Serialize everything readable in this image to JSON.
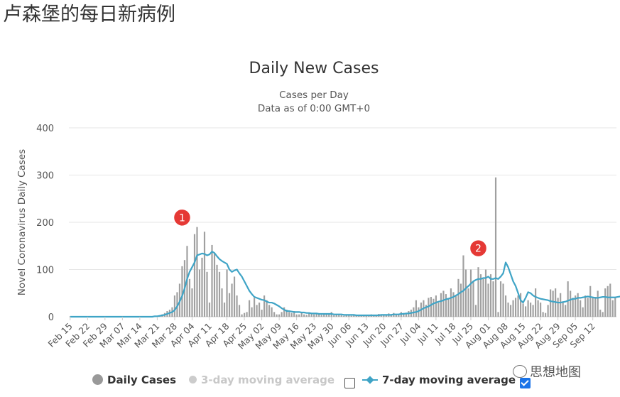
{
  "page": {
    "heading": "卢森堡的每日新病例"
  },
  "chart_data": {
    "type": "bar",
    "title": "Daily New Cases",
    "subtitle_lines": [
      "Cases per Day",
      "Data as of 0:00 GMT+0"
    ],
    "ylabel": "Novel Coronavirus Daily Cases",
    "ylim": [
      0,
      400
    ],
    "yticks": [
      0,
      100,
      200,
      300,
      400
    ],
    "start_date": "Feb 15",
    "xticks": [
      "Feb 15",
      "Feb 22",
      "Feb 29",
      "Mar 07",
      "Mar 14",
      "Mar 21",
      "Mar 28",
      "Apr 04",
      "Apr 11",
      "Apr 18",
      "Apr 25",
      "May 02",
      "May 09",
      "May 16",
      "May 23",
      "May 30",
      "Jun 06",
      "Jun 13",
      "Jun 20",
      "Jun 27",
      "Jul 04",
      "Jul 11",
      "Jul 18",
      "Jul 25",
      "Aug 01",
      "Aug 08",
      "Aug 15",
      "Aug 22",
      "Aug 29",
      "Sep 05",
      "Sep 12"
    ],
    "series": [
      {
        "name": "Daily Cases",
        "color": "#a0a0a0",
        "values": [
          0,
          0,
          0,
          0,
          0,
          0,
          0,
          0,
          0,
          0,
          0,
          0,
          0,
          0,
          0,
          0,
          0,
          0,
          0,
          0,
          0,
          0,
          0,
          0,
          0,
          0,
          0,
          0,
          0,
          0,
          0,
          0,
          0,
          1,
          1,
          2,
          3,
          5,
          8,
          12,
          15,
          20,
          45,
          52,
          70,
          107,
          120,
          150,
          80,
          60,
          175,
          190,
          100,
          125,
          180,
          95,
          30,
          152,
          135,
          110,
          95,
          60,
          30,
          100,
          50,
          70,
          85,
          45,
          25,
          5,
          8,
          10,
          35,
          20,
          40,
          25,
          30,
          15,
          45,
          35,
          25,
          20,
          10,
          5,
          5,
          10,
          20,
          15,
          10,
          8,
          12,
          5,
          5,
          8,
          5,
          4,
          7,
          6,
          5,
          8,
          6,
          4,
          7,
          5,
          6,
          10,
          3,
          4,
          5,
          3,
          2,
          4,
          3,
          2,
          3,
          2,
          2,
          3,
          4,
          3,
          2,
          5,
          3,
          4,
          6,
          3,
          5,
          4,
          7,
          5,
          8,
          6,
          4,
          10,
          8,
          6,
          12,
          15,
          20,
          35,
          20,
          30,
          35,
          25,
          40,
          42,
          38,
          45,
          30,
          50,
          55,
          48,
          40,
          60,
          52,
          45,
          80,
          70,
          130,
          100,
          60,
          100,
          75,
          25,
          105,
          90,
          80,
          100,
          70,
          90,
          75,
          295,
          10,
          75,
          70,
          45,
          30,
          25,
          35,
          40,
          45,
          50,
          28,
          22,
          35,
          30,
          25,
          60,
          35,
          30,
          10,
          8,
          25,
          58,
          55,
          60,
          40,
          50,
          30,
          25,
          75,
          55,
          40,
          45,
          50,
          35,
          20,
          45,
          40,
          65,
          40,
          42,
          55,
          15,
          10,
          60,
          65,
          70,
          35,
          40
        ]
      },
      {
        "name": "3-day moving average",
        "color": "#cccccc",
        "enabled": false
      },
      {
        "name": "7-day moving average",
        "color": "#3fa4c6",
        "enabled": true,
        "values": [
          0,
          0,
          0,
          0,
          0,
          0,
          0,
          0,
          0,
          0,
          0,
          0,
          0,
          0,
          0,
          0,
          0,
          0,
          0,
          0,
          0,
          0,
          0,
          0,
          0,
          0,
          0,
          0,
          0,
          0,
          0,
          0,
          0,
          0,
          1,
          1,
          2,
          3,
          4,
          6,
          8,
          10,
          14,
          22,
          32,
          44,
          60,
          80,
          95,
          105,
          115,
          130,
          132,
          134,
          133,
          130,
          132,
          138,
          135,
          128,
          122,
          118,
          115,
          112,
          100,
          95,
          98,
          100,
          92,
          85,
          75,
          65,
          55,
          48,
          42,
          40,
          38,
          36,
          35,
          32,
          30,
          30,
          28,
          25,
          22,
          18,
          15,
          12,
          12,
          11,
          10,
          10,
          10,
          9,
          9,
          8,
          8,
          7,
          7,
          7,
          6,
          6,
          6,
          6,
          6,
          6,
          5,
          5,
          5,
          5,
          4,
          4,
          4,
          4,
          4,
          3,
          3,
          3,
          3,
          3,
          3,
          3,
          3,
          3,
          3,
          4,
          4,
          4,
          4,
          4,
          5,
          5,
          5,
          6,
          6,
          7,
          7,
          8,
          9,
          10,
          12,
          15,
          18,
          20,
          22,
          25,
          28,
          30,
          32,
          33,
          35,
          37,
          38,
          40,
          42,
          45,
          48,
          52,
          55,
          60,
          65,
          70,
          75,
          78,
          80,
          80,
          82,
          82,
          85,
          80,
          80,
          82,
          80,
          85,
          92,
          115,
          105,
          90,
          75,
          65,
          50,
          35,
          30,
          40,
          52,
          50,
          45,
          42,
          40,
          38,
          37,
          36,
          35,
          33,
          32,
          31,
          30,
          30,
          31,
          32,
          34,
          36,
          38,
          38,
          40,
          40,
          41,
          42,
          43,
          42,
          41,
          40,
          40,
          41,
          42,
          42,
          41,
          41,
          41,
          41,
          42,
          43,
          44,
          43,
          42
        ]
      }
    ],
    "annotations": [
      {
        "label": "1",
        "date": "Mar 31",
        "value": 210
      },
      {
        "label": "2",
        "date": "Jul 28",
        "value": 145
      }
    ]
  },
  "legend": {
    "daily_cases": "Daily Cases",
    "ma3": "3-day moving average",
    "ma7": "7-day moving average",
    "ma3_checked": false,
    "ma7_checked": true
  },
  "watermark": {
    "text": "思想地图",
    "icon": "wechat-icon"
  }
}
